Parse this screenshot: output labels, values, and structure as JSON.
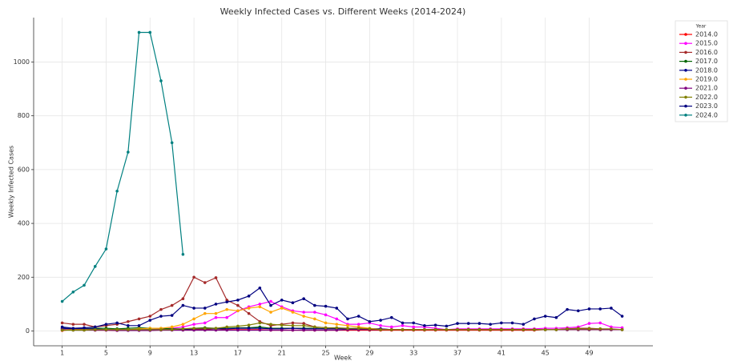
{
  "chart_data": {
    "type": "line",
    "title": "Weekly Infected Cases vs. Different Weeks (2014-2024)",
    "x_label": "Week",
    "y_label": "Weekly Infected Cases",
    "legend_title": "Year",
    "legend": "upper right outside",
    "grid": true,
    "x": [
      1,
      2,
      3,
      4,
      5,
      6,
      7,
      8,
      9,
      10,
      11,
      12,
      13,
      14,
      15,
      16,
      17,
      18,
      19,
      20,
      21,
      22,
      23,
      24,
      25,
      26,
      27,
      28,
      29,
      30,
      31,
      32,
      33,
      34,
      35,
      36,
      37,
      38,
      39,
      40,
      41,
      42,
      43,
      44,
      45,
      46,
      47,
      48,
      49,
      50,
      51,
      52
    ],
    "xlim": [
      -1.6,
      54.8
    ],
    "xticks": [
      1,
      5,
      9,
      13,
      17,
      21,
      25,
      29,
      33,
      37,
      41,
      45,
      49
    ],
    "ylim": [
      -55,
      1165
    ],
    "yticks": [
      0,
      200,
      400,
      600,
      800,
      1000
    ],
    "series": [
      {
        "name": "2014.0",
        "color": "#ff0000",
        "values": [
          2,
          5,
          5,
          3,
          3,
          2,
          3,
          3,
          3,
          5,
          5,
          5,
          5,
          5,
          8,
          5,
          5,
          5,
          5,
          3,
          3,
          3,
          3,
          3,
          3,
          3,
          3,
          3,
          3,
          3,
          3,
          3,
          3,
          3,
          3,
          3,
          3,
          3,
          3,
          3,
          3,
          3,
          3,
          3,
          5,
          5,
          5,
          5,
          5,
          5,
          5,
          5
        ]
      },
      {
        "name": "2015.0",
        "color": "#ff00ff",
        "values": [
          5,
          5,
          5,
          5,
          5,
          5,
          5,
          5,
          5,
          8,
          10,
          15,
          25,
          30,
          50,
          50,
          75,
          90,
          100,
          110,
          90,
          75,
          70,
          70,
          60,
          45,
          25,
          25,
          30,
          20,
          15,
          20,
          15,
          15,
          10,
          5,
          8,
          8,
          8,
          8,
          8,
          8,
          8,
          8,
          10,
          10,
          12,
          15,
          28,
          30,
          15,
          12
        ]
      },
      {
        "name": "2016.0",
        "color": "#a52a2a",
        "values": [
          30,
          25,
          25,
          15,
          20,
          25,
          35,
          45,
          55,
          80,
          95,
          120,
          200,
          180,
          198,
          115,
          95,
          65,
          35,
          20,
          25,
          30,
          28,
          15,
          12,
          10,
          10,
          10,
          8,
          8,
          5,
          5,
          5,
          5,
          5,
          5,
          5,
          5,
          5,
          5,
          5,
          5,
          5,
          5,
          5,
          5,
          8,
          10,
          10,
          8,
          5,
          5
        ]
      },
      {
        "name": "2017.0",
        "color": "#006400",
        "values": [
          10,
          8,
          8,
          10,
          10,
          8,
          10,
          12,
          10,
          10,
          8,
          8,
          10,
          12,
          10,
          10,
          12,
          12,
          15,
          10,
          10,
          10,
          10,
          10,
          8,
          8,
          8,
          8,
          5,
          5,
          5,
          5,
          5,
          5,
          5,
          5,
          5,
          5,
          5,
          5,
          5,
          5,
          5,
          5,
          5,
          5,
          5,
          5,
          5,
          5,
          5,
          5
        ]
      },
      {
        "name": "2018.0",
        "color": "#00008b",
        "values": [
          10,
          8,
          8,
          8,
          5,
          5,
          5,
          5,
          5,
          5,
          5,
          5,
          8,
          8,
          8,
          8,
          10,
          10,
          10,
          8,
          8,
          10,
          8,
          8,
          8,
          8,
          8,
          8,
          8,
          8,
          5,
          5,
          5,
          5,
          5,
          5,
          5,
          5,
          5,
          5,
          5,
          5,
          5,
          5,
          5,
          5,
          5,
          5,
          5,
          5,
          5,
          5
        ]
      },
      {
        "name": "2019.0",
        "color": "#ffa500",
        "values": [
          5,
          5,
          5,
          5,
          5,
          5,
          5,
          8,
          10,
          10,
          15,
          25,
          45,
          65,
          65,
          80,
          75,
          85,
          90,
          70,
          85,
          70,
          55,
          45,
          30,
          25,
          20,
          15,
          10,
          5,
          5,
          5,
          5,
          5,
          5,
          5,
          5,
          5,
          5,
          5,
          5,
          5,
          5,
          5,
          5,
          5,
          5,
          5,
          5,
          5,
          5,
          5
        ]
      },
      {
        "name": "2021.0",
        "color": "#800080",
        "values": [
          5,
          3,
          3,
          3,
          3,
          2,
          2,
          2,
          2,
          3,
          3,
          3,
          3,
          3,
          3,
          3,
          3,
          3,
          3,
          3,
          3,
          3,
          3,
          3,
          3,
          3,
          5,
          5,
          5,
          5,
          5,
          5,
          5,
          5,
          5,
          5,
          5,
          5,
          5,
          5,
          5,
          5,
          5,
          5,
          5,
          5,
          5,
          5,
          5,
          5,
          5,
          5
        ]
      },
      {
        "name": "2022.0",
        "color": "#808000",
        "values": [
          3,
          3,
          3,
          5,
          5,
          5,
          5,
          5,
          5,
          5,
          5,
          8,
          10,
          10,
          10,
          15,
          18,
          22,
          30,
          25,
          22,
          20,
          20,
          15,
          12,
          12,
          10,
          10,
          8,
          5,
          5,
          5,
          5,
          5,
          5,
          5,
          5,
          5,
          5,
          5,
          5,
          5,
          5,
          5,
          5,
          5,
          8,
          8,
          8,
          8,
          8,
          5
        ]
      },
      {
        "name": "2023.0",
        "color": "#000080",
        "values": [
          15,
          10,
          12,
          15,
          25,
          30,
          20,
          20,
          40,
          55,
          58,
          95,
          85,
          85,
          100,
          108,
          115,
          130,
          160,
          95,
          115,
          105,
          120,
          95,
          92,
          85,
          45,
          55,
          35,
          40,
          50,
          30,
          30,
          20,
          22,
          18,
          28,
          28,
          28,
          25,
          30,
          30,
          25,
          45,
          55,
          50,
          80,
          75,
          82,
          82,
          85,
          55
        ]
      },
      {
        "name": "2024.0",
        "color": "#008080",
        "values": [
          110,
          145,
          170,
          240,
          305,
          520,
          665,
          1110,
          1110,
          930,
          700,
          285,
          null,
          null,
          null,
          null,
          null,
          null,
          null,
          null,
          null,
          null,
          null,
          null,
          null,
          null,
          null,
          null,
          null,
          null,
          null,
          null,
          null,
          null,
          null,
          null,
          null,
          null,
          null,
          null,
          null,
          null,
          null,
          null,
          null,
          null,
          null,
          null,
          null,
          null,
          null,
          null
        ]
      }
    ]
  }
}
